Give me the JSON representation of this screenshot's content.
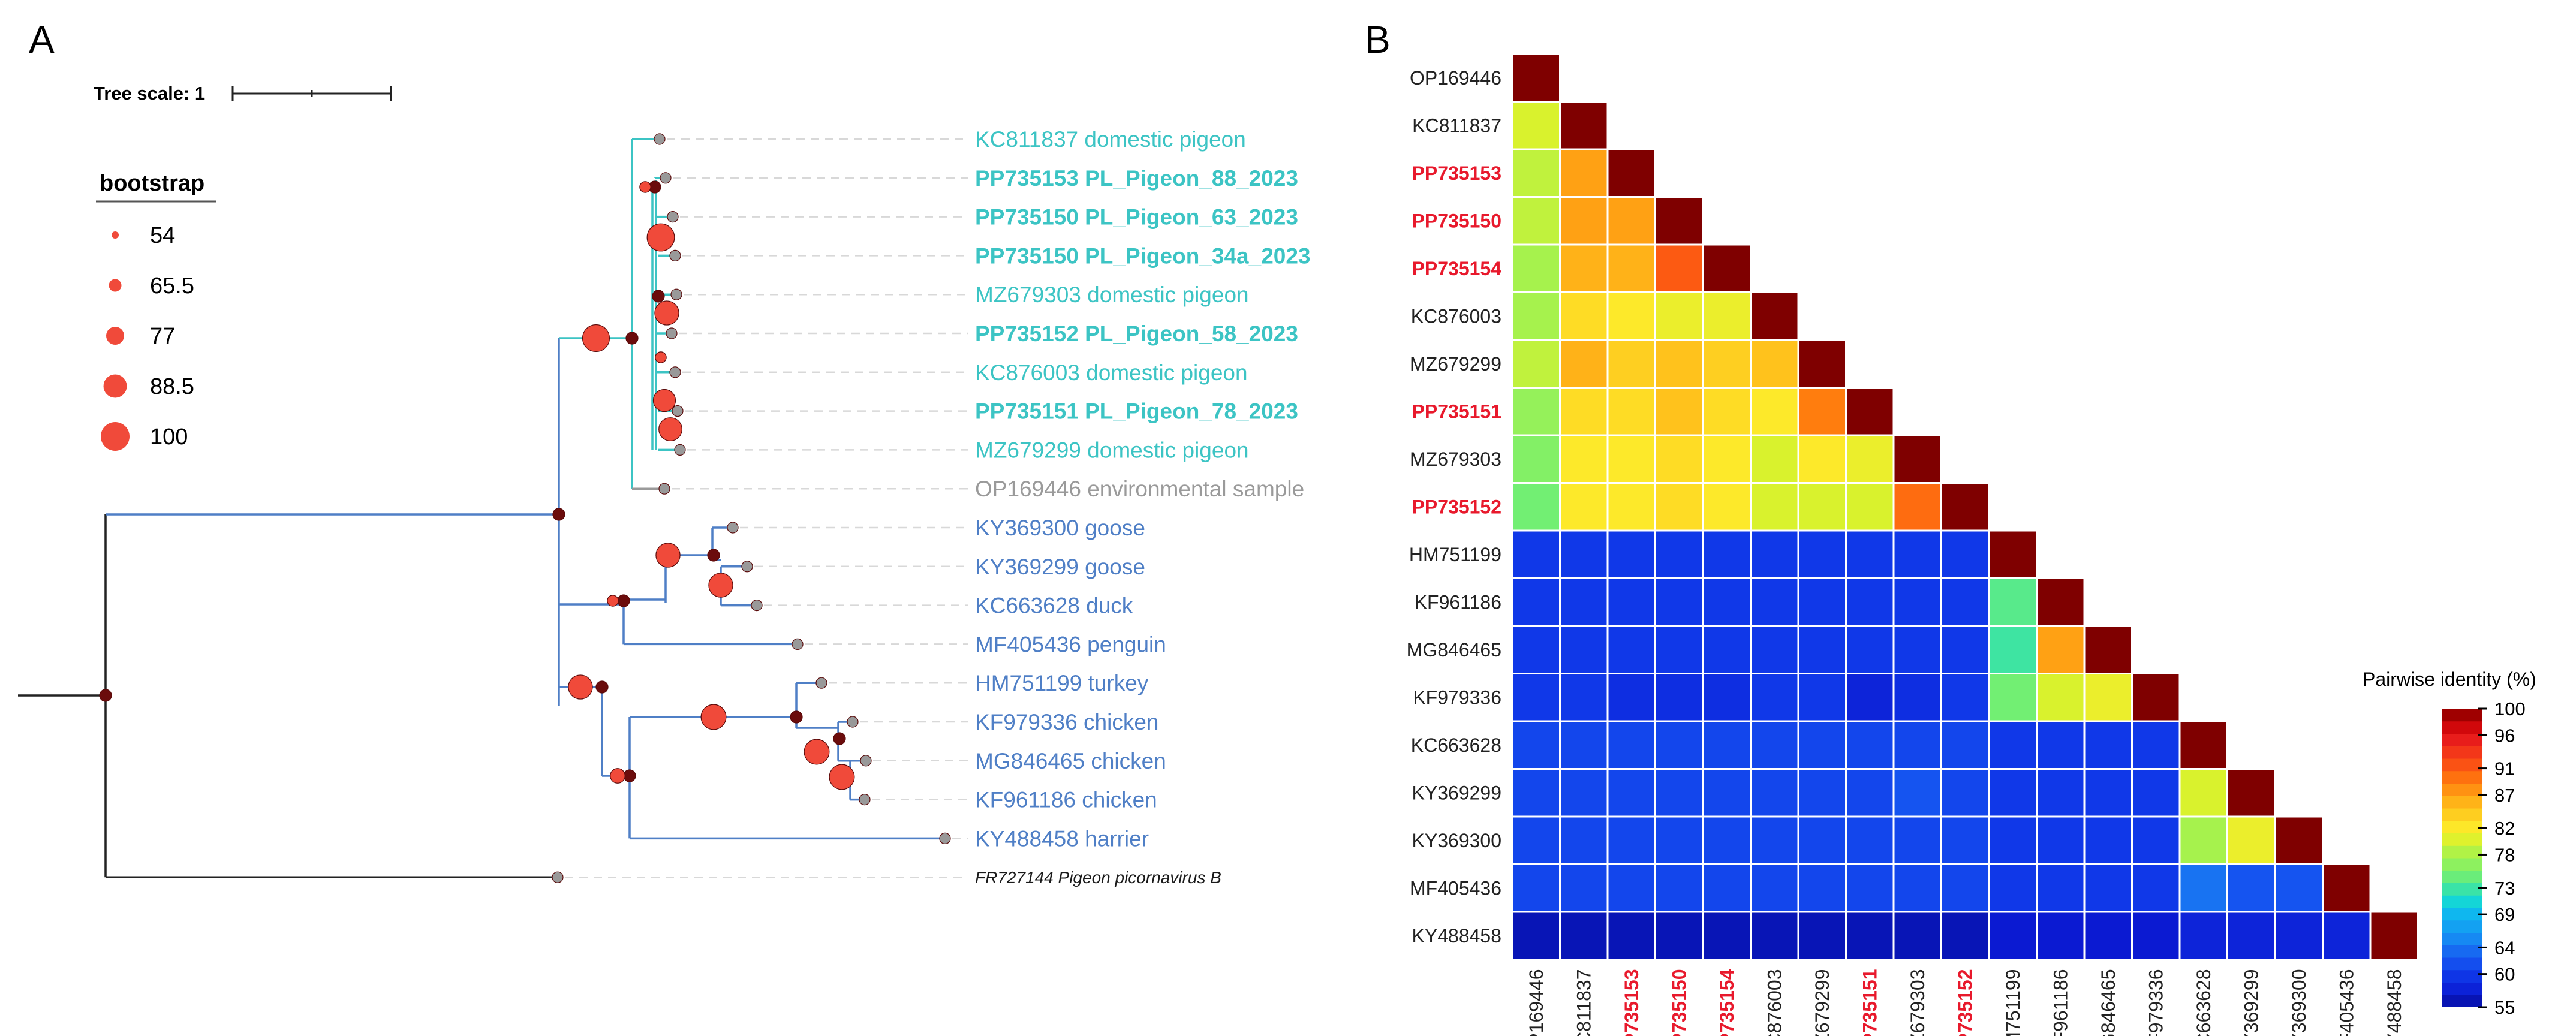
{
  "panel_a": {
    "letter": "A",
    "tree_scale_label": "Tree scale: 1",
    "legend": {
      "title": "bootstrap",
      "items": [
        {
          "label": "54",
          "value": 54
        },
        {
          "label": "65.5",
          "value": 65.5
        },
        {
          "label": "77",
          "value": 77
        },
        {
          "label": "88.5",
          "value": 88.5
        },
        {
          "label": "100",
          "value": 100
        }
      ]
    },
    "colors": {
      "pigeon_clade": "#3cc4c4",
      "other_clade": "#4f7fc6",
      "environmental": "#9a9a9a",
      "bootstrap_node": "#f04a3a",
      "internal_node": "#6b0c0c",
      "tip_node": "#999999"
    },
    "tips": [
      {
        "id": "KC811837",
        "label": "KC811837 domestic pigeon",
        "bold": false,
        "group": "pigeon"
      },
      {
        "id": "PP735153",
        "label": "PP735153 PL_Pigeon_88_2023",
        "bold": true,
        "group": "pigeon"
      },
      {
        "id": "PP735150a",
        "label": "PP735150 PL_Pigeon_63_2023",
        "bold": true,
        "group": "pigeon"
      },
      {
        "id": "PP735150b",
        "label": "PP735150 PL_Pigeon_34a_2023",
        "bold": true,
        "group": "pigeon"
      },
      {
        "id": "MZ679303",
        "label": "MZ679303 domestic pigeon",
        "bold": false,
        "group": "pigeon"
      },
      {
        "id": "PP735152",
        "label": "PP735152 PL_Pigeon_58_2023",
        "bold": true,
        "group": "pigeon"
      },
      {
        "id": "KC876003",
        "label": "KC876003 domestic pigeon",
        "bold": false,
        "group": "pigeon"
      },
      {
        "id": "PP735151",
        "label": "PP735151 PL_Pigeon_78_2023",
        "bold": true,
        "group": "pigeon"
      },
      {
        "id": "MZ679299",
        "label": "MZ679299 domestic pigeon",
        "bold": false,
        "group": "pigeon"
      },
      {
        "id": "OP169446",
        "label": "OP169446 environmental sample",
        "bold": false,
        "group": "environmental"
      },
      {
        "id": "KY369300",
        "label": "KY369300 goose",
        "bold": false,
        "group": "other"
      },
      {
        "id": "KY369299",
        "label": "KY369299 goose",
        "bold": false,
        "group": "other"
      },
      {
        "id": "KC663628",
        "label": "KC663628 duck",
        "bold": false,
        "group": "other"
      },
      {
        "id": "MF405436",
        "label": "MF405436 penguin",
        "bold": false,
        "group": "other"
      },
      {
        "id": "HM751199",
        "label": "HM751199 turkey",
        "bold": false,
        "group": "other"
      },
      {
        "id": "KF979336",
        "label": "KF979336 chicken",
        "bold": false,
        "group": "other"
      },
      {
        "id": "MG846465",
        "label": "MG846465 chicken",
        "bold": false,
        "group": "other"
      },
      {
        "id": "KF961186",
        "label": "KF961186 chicken",
        "bold": false,
        "group": "other"
      },
      {
        "id": "KY488458",
        "label": "KY488458 harrier",
        "bold": false,
        "group": "other"
      },
      {
        "id": "FR727144",
        "label": "FR727144 Pigeon picornavirus B",
        "bold": false,
        "group": "outgroup"
      }
    ]
  },
  "panel_b": {
    "letter": "B",
    "colorbar_title": "Pairwise identity (%)",
    "colorbar_ticks": [
      "100",
      "96",
      "91",
      "87",
      "82",
      "78",
      "73",
      "69",
      "64",
      "60",
      "55"
    ],
    "colorbar_range": [
      55,
      100
    ],
    "colorbar_bands": [
      {
        "value": 100,
        "color": "#7f0000"
      },
      {
        "value": 98,
        "color": "#c40000"
      },
      {
        "value": 96,
        "color": "#e4141c"
      },
      {
        "value": 93,
        "color": "#f63d18"
      },
      {
        "value": 91,
        "color": "#fc5a12"
      },
      {
        "value": 89,
        "color": "#ff7d0e"
      },
      {
        "value": 87,
        "color": "#ffa114"
      },
      {
        "value": 85,
        "color": "#ffc21c"
      },
      {
        "value": 82,
        "color": "#fde92a"
      },
      {
        "value": 80,
        "color": "#d9f22d"
      },
      {
        "value": 78,
        "color": "#a6f24d"
      },
      {
        "value": 75,
        "color": "#72ef73"
      },
      {
        "value": 73,
        "color": "#3ee4a2"
      },
      {
        "value": 71,
        "color": "#14d6d6"
      },
      {
        "value": 69,
        "color": "#0fb6f0"
      },
      {
        "value": 66,
        "color": "#1594f4"
      },
      {
        "value": 64,
        "color": "#1873f2"
      },
      {
        "value": 62,
        "color": "#1554f0"
      },
      {
        "value": 60,
        "color": "#1038e8"
      },
      {
        "value": 57,
        "color": "#0b1ad2"
      },
      {
        "value": 55,
        "color": "#050f9a"
      }
    ],
    "highlight_color": "#e8192c",
    "sequences": [
      {
        "label": "OP169446",
        "highlight": false
      },
      {
        "label": "KC811837",
        "highlight": false
      },
      {
        "label": "PP735153",
        "highlight": true
      },
      {
        "label": "PP735150",
        "highlight": true
      },
      {
        "label": "PP735154",
        "highlight": true
      },
      {
        "label": "KC876003",
        "highlight": false
      },
      {
        "label": "MZ679299",
        "highlight": false
      },
      {
        "label": "PP735151",
        "highlight": true
      },
      {
        "label": "MZ679303",
        "highlight": false
      },
      {
        "label": "PP735152",
        "highlight": true
      },
      {
        "label": "HM751199",
        "highlight": false
      },
      {
        "label": "KF961186",
        "highlight": false
      },
      {
        "label": "MG846465",
        "highlight": false
      },
      {
        "label": "KF979336",
        "highlight": false
      },
      {
        "label": "KC663628",
        "highlight": false
      },
      {
        "label": "KY369299",
        "highlight": false
      },
      {
        "label": "KY369300",
        "highlight": false
      },
      {
        "label": "MF405436",
        "highlight": false
      },
      {
        "label": "KY488458",
        "highlight": false
      }
    ],
    "matrix_lower": [
      [
        100
      ],
      [
        80,
        100
      ],
      [
        79,
        87,
        100
      ],
      [
        79,
        87,
        87,
        100
      ],
      [
        78,
        86,
        86,
        91,
        100
      ],
      [
        78,
        83,
        82,
        81,
        81,
        100
      ],
      [
        79,
        86,
        84,
        85,
        84,
        85,
        100
      ],
      [
        77,
        83,
        83,
        85,
        83,
        82,
        89,
        100
      ],
      [
        76,
        82,
        82,
        83,
        82,
        80,
        82,
        81,
        100
      ],
      [
        75,
        82,
        82,
        83,
        82,
        80,
        80,
        80,
        90,
        100
      ],
      [
        60,
        60,
        60,
        60,
        60,
        60,
        60,
        60,
        60,
        60,
        100
      ],
      [
        60,
        60,
        60,
        60,
        60,
        60,
        60,
        60,
        60,
        60,
        74,
        100
      ],
      [
        60,
        60,
        60,
        60,
        60,
        60,
        60,
        60,
        60,
        60,
        73,
        87,
        100
      ],
      [
        60,
        60,
        59,
        59,
        59,
        60,
        60,
        58,
        59,
        60,
        75,
        80,
        81,
        100
      ],
      [
        61,
        61,
        61,
        61,
        61,
        61,
        61,
        61,
        61,
        61,
        60,
        60,
        60,
        60,
        100
      ],
      [
        61,
        61,
        61,
        61,
        61,
        61,
        61,
        61,
        62,
        61,
        60,
        60,
        60,
        60,
        80,
        100
      ],
      [
        61,
        61,
        61,
        61,
        61,
        61,
        61,
        61,
        61,
        61,
        60,
        60,
        60,
        60,
        78,
        81,
        100
      ],
      [
        61,
        61,
        61,
        61,
        61,
        61,
        61,
        61,
        61,
        61,
        60,
        60,
        60,
        60,
        64,
        62,
        62,
        100
      ],
      [
        56,
        56,
        56,
        56,
        56,
        56,
        56,
        56,
        56,
        56,
        57,
        57,
        57,
        57,
        58,
        58,
        58,
        58,
        100
      ]
    ]
  }
}
